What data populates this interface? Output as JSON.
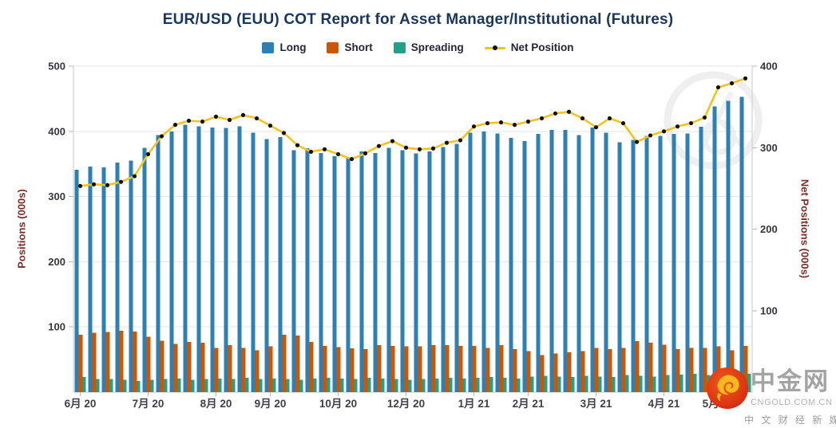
{
  "title": "EUR/USD (EUU) COT Report for Asset Manager/Institutional (Futures)",
  "legend": [
    {
      "label": "Long",
      "type": "bar",
      "color": "#2e7fb4"
    },
    {
      "label": "Short",
      "type": "bar",
      "color": "#cd5600"
    },
    {
      "label": "Spreading",
      "type": "bar",
      "color": "#22a188"
    },
    {
      "label": "Net Position",
      "type": "line",
      "color": "#f3c31b"
    }
  ],
  "left_axis": {
    "title": "Positions (000s)",
    "ticks": [
      100,
      200,
      300,
      400,
      500
    ],
    "range": [
      0,
      500
    ]
  },
  "right_axis": {
    "title": "Net Positions (000s)",
    "ticks": [
      100,
      200,
      300,
      400
    ],
    "range": [
      0,
      400
    ]
  },
  "x_axis": {
    "tick_labels": [
      "6月 20",
      "7月 20",
      "8月 20",
      "9月 20",
      "10月 20",
      "12月 20",
      "1月 21",
      "2月 21",
      "3月 21",
      "4月 21",
      "5月 21"
    ],
    "tick_positions": [
      0,
      5,
      10,
      14,
      19,
      24,
      29,
      33,
      38,
      43,
      47
    ]
  },
  "chart_data": {
    "type": "combo",
    "x_unit": "week",
    "n_points": 50,
    "x_range_note": "weekly COT reports, Jun 2020 - May 2021",
    "grid": true,
    "legend_position": "top",
    "series": [
      {
        "name": "Long",
        "type": "bar",
        "axis": "left",
        "color": "#2e7fb4",
        "values": [
          341,
          346,
          345,
          352,
          355,
          375,
          394,
          400,
          410,
          408,
          406,
          405,
          408,
          398,
          388,
          391,
          371,
          374,
          367,
          362,
          359,
          369,
          367,
          375,
          371,
          366,
          369,
          376,
          381,
          398,
          400,
          397,
          390,
          385,
          396,
          402,
          402,
          394,
          406,
          398,
          383,
          387,
          393,
          393,
          396,
          397,
          407,
          438,
          447,
          453
        ]
      },
      {
        "name": "Short",
        "type": "bar",
        "axis": "left",
        "color": "#cd5600",
        "values": [
          88,
          91,
          92,
          94,
          93,
          85,
          79,
          74,
          77,
          76,
          68,
          72,
          68,
          64,
          70,
          88,
          87,
          77,
          71,
          69,
          67,
          66,
          72,
          71,
          70,
          70,
          72,
          72,
          71,
          71,
          68,
          72,
          66,
          63,
          57,
          59,
          61,
          63,
          68,
          66,
          68,
          78,
          76,
          73,
          66,
          68,
          68,
          70,
          64,
          71
        ]
      },
      {
        "name": "Spreading",
        "type": "bar",
        "axis": "left",
        "color": "#22a188",
        "values": [
          23,
          20,
          20,
          19,
          17,
          19,
          20,
          21,
          19,
          20,
          21,
          20,
          22,
          20,
          21,
          20,
          19,
          21,
          22,
          21,
          20,
          22,
          21,
          20,
          19,
          20,
          21,
          22,
          21,
          22,
          23,
          22,
          21,
          24,
          25,
          24,
          23,
          25,
          24,
          23,
          26,
          25,
          24,
          26,
          27,
          28,
          26,
          29,
          30,
          28
        ]
      },
      {
        "name": "Net Position",
        "type": "line",
        "axis": "right",
        "color": "#f3c31b",
        "marker_color": "#111111",
        "values": [
          253,
          255,
          254,
          258,
          265,
          292,
          314,
          328,
          333,
          332,
          338,
          334,
          340,
          336,
          327,
          318,
          303,
          295,
          298,
          292,
          286,
          293,
          302,
          308,
          300,
          298,
          299,
          306,
          309,
          326,
          330,
          331,
          328,
          332,
          336,
          342,
          344,
          336,
          325,
          336,
          330,
          307,
          315,
          320,
          326,
          330,
          337,
          374,
          379,
          385
        ]
      }
    ]
  },
  "watermark": {
    "name": "中金网",
    "domain": "CNGOLD.COM.CN",
    "tagline": "中 文 财 经 新 媒 体"
  }
}
